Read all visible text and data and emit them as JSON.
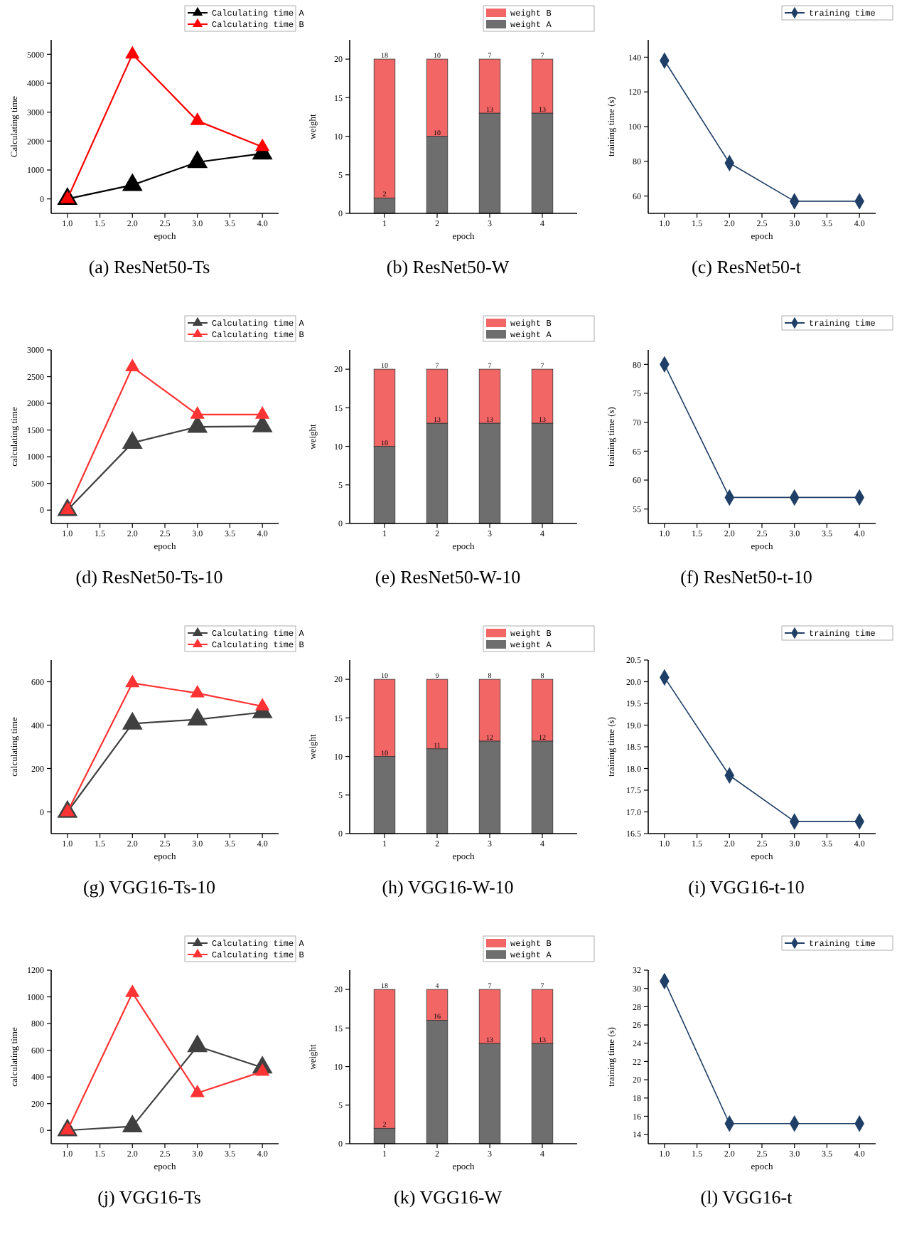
{
  "chart_data": [
    {
      "type": "line",
      "title": "(a) ResNet50-Ts",
      "xlabel": "epoch",
      "ylabel": "Calculating time",
      "x": [
        1,
        2,
        3,
        4
      ],
      "xlim": [
        0.75,
        4.25
      ],
      "xticks": [
        {
          "value": 1,
          "label": "1.0"
        },
        1.5,
        {
          "value": 2,
          "label": "2.0"
        },
        2.5,
        {
          "value": 3,
          "label": "3.0"
        },
        3.5,
        {
          "value": 4,
          "label": "4.0"
        }
      ],
      "ylim": [
        -500,
        5500
      ],
      "yticks": [
        0,
        1000,
        2000,
        3000,
        4000,
        5000
      ],
      "marker": "triangle",
      "legend": "top right",
      "series": [
        {
          "name": "Calculating time A",
          "color": "#000000",
          "values": [
            0,
            480,
            1270,
            1570
          ]
        },
        {
          "name": "Calculating time B",
          "color": "#ff0000",
          "values": [
            0,
            5000,
            2700,
            1800
          ]
        }
      ]
    },
    {
      "type": "bar",
      "title": "(b) ResNet50-W",
      "xlabel": "epoch",
      "ylabel": "weight",
      "categories": [
        "1",
        "2",
        "3",
        "4"
      ],
      "stacked": true,
      "ylim": [
        0,
        22.5
      ],
      "yticks": [
        0,
        5,
        10,
        15,
        20
      ],
      "data_labels": true,
      "legend": "top right",
      "series": [
        {
          "name": "weight A",
          "color": "#6e6e6e",
          "values": [
            2,
            10,
            13,
            13
          ]
        },
        {
          "name": "weight B",
          "color": "#f26666",
          "values": [
            18,
            10,
            7,
            7
          ]
        }
      ]
    },
    {
      "type": "line",
      "title": "(c) ResNet50-t",
      "xlabel": "epoch",
      "ylabel": "training time (s)",
      "x": [
        1,
        2,
        3,
        4
      ],
      "xlim": [
        0.75,
        4.25
      ],
      "xticks": [
        {
          "value": 1,
          "label": "1.0"
        },
        1.5,
        {
          "value": 2,
          "label": "2.0"
        },
        2.5,
        {
          "value": 3,
          "label": "3.0"
        },
        3.5,
        {
          "value": 4,
          "label": "4.0"
        }
      ],
      "ylim": [
        50,
        150
      ],
      "yticks": [
        60,
        80,
        100,
        120,
        140
      ],
      "marker": "diamond",
      "legend": "top right",
      "series": [
        {
          "name": "training time",
          "color": "#1f3f66",
          "values": [
            138,
            79,
            57,
            57
          ]
        }
      ]
    },
    {
      "type": "line",
      "title": "(d) ResNet50-Ts-10",
      "xlabel": "epoch",
      "ylabel": "calculating time",
      "x": [
        1,
        2,
        3,
        4
      ],
      "xlim": [
        0.75,
        4.25
      ],
      "xticks": [
        {
          "value": 1,
          "label": "1.0"
        },
        1.5,
        {
          "value": 2,
          "label": "2.0"
        },
        2.5,
        {
          "value": 3,
          "label": "3.0"
        },
        3.5,
        {
          "value": 4,
          "label": "4.0"
        }
      ],
      "ylim": [
        -250,
        3000
      ],
      "yticks": [
        0,
        500,
        1000,
        1500,
        2000,
        2500,
        3000
      ],
      "marker": "triangle",
      "legend": "top right",
      "series": [
        {
          "name": "Calculating time A",
          "color": "#404040",
          "values": [
            0,
            1260,
            1560,
            1570
          ]
        },
        {
          "name": "Calculating time B",
          "color": "#ff3333",
          "values": [
            0,
            2680,
            1790,
            1790
          ]
        }
      ]
    },
    {
      "type": "bar",
      "title": "(e) ResNet50-W-10",
      "xlabel": "epoch",
      "ylabel": "weight",
      "categories": [
        "1",
        "2",
        "3",
        "4"
      ],
      "stacked": true,
      "ylim": [
        0,
        22.5
      ],
      "yticks": [
        0,
        5,
        10,
        15,
        20
      ],
      "data_labels": true,
      "legend": "top right",
      "series": [
        {
          "name": "weight A",
          "color": "#6e6e6e",
          "values": [
            10,
            13,
            13,
            13
          ]
        },
        {
          "name": "weight B",
          "color": "#f26666",
          "values": [
            10,
            7,
            7,
            7
          ]
        }
      ]
    },
    {
      "type": "line",
      "title": "(f) ResNet50-t-10",
      "xlabel": "epoch",
      "ylabel": "training time (s)",
      "x": [
        1,
        2,
        3,
        4
      ],
      "xlim": [
        0.75,
        4.25
      ],
      "xticks": [
        {
          "value": 1,
          "label": "1.0"
        },
        1.5,
        {
          "value": 2,
          "label": "2.0"
        },
        2.5,
        {
          "value": 3,
          "label": "3.0"
        },
        3.5,
        {
          "value": 4,
          "label": "4.0"
        }
      ],
      "ylim": [
        52.5,
        82.5
      ],
      "yticks": [
        55,
        60,
        65,
        70,
        75,
        80
      ],
      "marker": "diamond",
      "legend": "top right",
      "series": [
        {
          "name": "training time",
          "color": "#1f3f66",
          "values": [
            80,
            57,
            57,
            57
          ]
        }
      ]
    },
    {
      "type": "line",
      "title": "(g) VGG16-Ts-10",
      "xlabel": "epoch",
      "ylabel": "calculating time",
      "x": [
        1,
        2,
        3,
        4
      ],
      "xlim": [
        0.75,
        4.25
      ],
      "xticks": [
        {
          "value": 1,
          "label": "1.0"
        },
        1.5,
        {
          "value": 2,
          "label": "2.0"
        },
        2.5,
        {
          "value": 3,
          "label": "3.0"
        },
        3.5,
        {
          "value": 4,
          "label": "4.0"
        }
      ],
      "ylim": [
        -100,
        700
      ],
      "yticks": [
        0,
        200,
        400,
        600
      ],
      "marker": "triangle",
      "legend": "top right",
      "series": [
        {
          "name": "Calculating time A",
          "color": "#404040",
          "values": [
            0,
            407,
            426,
            459
          ]
        },
        {
          "name": "Calculating time B",
          "color": "#ff3333",
          "values": [
            0,
            594,
            547,
            487
          ]
        }
      ]
    },
    {
      "type": "bar",
      "title": "(h) VGG16-W-10",
      "xlabel": "epoch",
      "ylabel": "weight",
      "categories": [
        "1",
        "2",
        "3",
        "4"
      ],
      "stacked": true,
      "ylim": [
        0,
        22.5
      ],
      "yticks": [
        0,
        5,
        10,
        15,
        20
      ],
      "data_labels": true,
      "legend": "top right",
      "series": [
        {
          "name": "weight A",
          "color": "#6e6e6e",
          "values": [
            10,
            11,
            12,
            12
          ]
        },
        {
          "name": "weight B",
          "color": "#f26666",
          "values": [
            10,
            9,
            8,
            8
          ]
        }
      ]
    },
    {
      "type": "line",
      "title": "(i) VGG16-t-10",
      "xlabel": "epoch",
      "ylabel": "training time (s)",
      "x": [
        1,
        2,
        3,
        4
      ],
      "xlim": [
        0.75,
        4.25
      ],
      "xticks": [
        {
          "value": 1,
          "label": "1.0"
        },
        1.5,
        {
          "value": 2,
          "label": "2.0"
        },
        2.5,
        {
          "value": 3,
          "label": "3.0"
        },
        3.5,
        {
          "value": 4,
          "label": "4.0"
        }
      ],
      "ylim": [
        16.5,
        20.5
      ],
      "yticks": [
        16.5,
        {
          "value": 17,
          "label": "17.0"
        },
        17.5,
        {
          "value": 18,
          "label": "18.0"
        },
        18.5,
        {
          "value": 19,
          "label": "19.0"
        },
        19.5,
        {
          "value": 20,
          "label": "20.0"
        },
        20.5
      ],
      "marker": "diamond",
      "legend": "top right",
      "series": [
        {
          "name": "training time",
          "color": "#1f3f66",
          "values": [
            20.1,
            17.84,
            16.78,
            16.78
          ]
        }
      ]
    },
    {
      "type": "line",
      "title": "(j) VGG16-Ts",
      "xlabel": "epoch",
      "ylabel": "calculating time",
      "x": [
        1,
        2,
        3,
        4
      ],
      "xlim": [
        0.75,
        4.25
      ],
      "xticks": [
        {
          "value": 1,
          "label": "1.0"
        },
        1.5,
        {
          "value": 2,
          "label": "2.0"
        },
        2.5,
        {
          "value": 3,
          "label": "3.0"
        },
        3.5,
        {
          "value": 4,
          "label": "4.0"
        }
      ],
      "ylim": [
        -100,
        1200
      ],
      "yticks": [
        0,
        200,
        400,
        600,
        800,
        1000,
        1200
      ],
      "marker": "triangle",
      "legend": "top right",
      "series": [
        {
          "name": "Calculating time A",
          "color": "#404040",
          "values": [
            0,
            30,
            630,
            470
          ]
        },
        {
          "name": "Calculating time B",
          "color": "#ff3333",
          "values": [
            0,
            1030,
            280,
            440
          ]
        }
      ]
    },
    {
      "type": "bar",
      "title": "(k) VGG16-W",
      "xlabel": "epoch",
      "ylabel": "weight",
      "categories": [
        "1",
        "2",
        "3",
        "4"
      ],
      "stacked": true,
      "ylim": [
        0,
        22.5
      ],
      "yticks": [
        0,
        5,
        10,
        15,
        20
      ],
      "data_labels": true,
      "legend": "top right",
      "series": [
        {
          "name": "weight A",
          "color": "#6e6e6e",
          "values": [
            2,
            16,
            13,
            13
          ]
        },
        {
          "name": "weight B",
          "color": "#f26666",
          "values": [
            18,
            4,
            7,
            7
          ]
        }
      ]
    },
    {
      "type": "line",
      "title": "(l) VGG16-t",
      "xlabel": "epoch",
      "ylabel": "training time (s)",
      "x": [
        1,
        2,
        3,
        4
      ],
      "xlim": [
        0.75,
        4.25
      ],
      "xticks": [
        {
          "value": 1,
          "label": "1.0"
        },
        1.5,
        {
          "value": 2,
          "label": "2.0"
        },
        2.5,
        {
          "value": 3,
          "label": "3.0"
        },
        3.5,
        {
          "value": 4,
          "label": "4.0"
        }
      ],
      "ylim": [
        13,
        32
      ],
      "yticks": [
        14,
        16,
        18,
        20,
        22,
        24,
        26,
        28,
        30,
        32
      ],
      "marker": "diamond",
      "legend": "top right",
      "series": [
        {
          "name": "training time",
          "color": "#1f3f66",
          "values": [
            30.8,
            15.2,
            15.2,
            15.2
          ]
        }
      ]
    }
  ]
}
